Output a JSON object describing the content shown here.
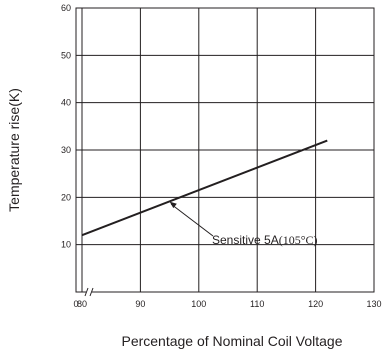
{
  "chart_data": {
    "type": "line",
    "xlabel": "Percentage of Nominal Coil Voltage",
    "ylabel": "Temperature rise(K)",
    "xlim": [
      0,
      130
    ],
    "ylim": [
      0,
      60
    ],
    "x_axis_break": true,
    "x_ticks": [
      {
        "value": 0,
        "label": "0"
      },
      {
        "value": 80,
        "label": "80"
      },
      {
        "value": 90,
        "label": "90"
      },
      {
        "value": 100,
        "label": "100"
      },
      {
        "value": 110,
        "label": "110"
      },
      {
        "value": 120,
        "label": "120"
      },
      {
        "value": 130,
        "label": "130"
      }
    ],
    "y_ticks": [
      {
        "value": 10,
        "label": "10"
      },
      {
        "value": 20,
        "label": "20"
      },
      {
        "value": 30,
        "label": "30"
      },
      {
        "value": 40,
        "label": "40"
      },
      {
        "value": 50,
        "label": "50"
      },
      {
        "value": 60,
        "label": "60"
      }
    ],
    "grid": true,
    "series": [
      {
        "name": "Sensitive 5A(105°C)",
        "x": [
          80,
          122
        ],
        "y": [
          12,
          32
        ]
      }
    ],
    "annotations": [
      {
        "label_prefix": "Sensitive  5A",
        "label_condition": "(105°C)",
        "points_to": {
          "x": 95,
          "y": 19.1
        }
      }
    ],
    "colors": {
      "line": "#231f20",
      "grid": "#231f20",
      "text": "#231f20"
    }
  }
}
